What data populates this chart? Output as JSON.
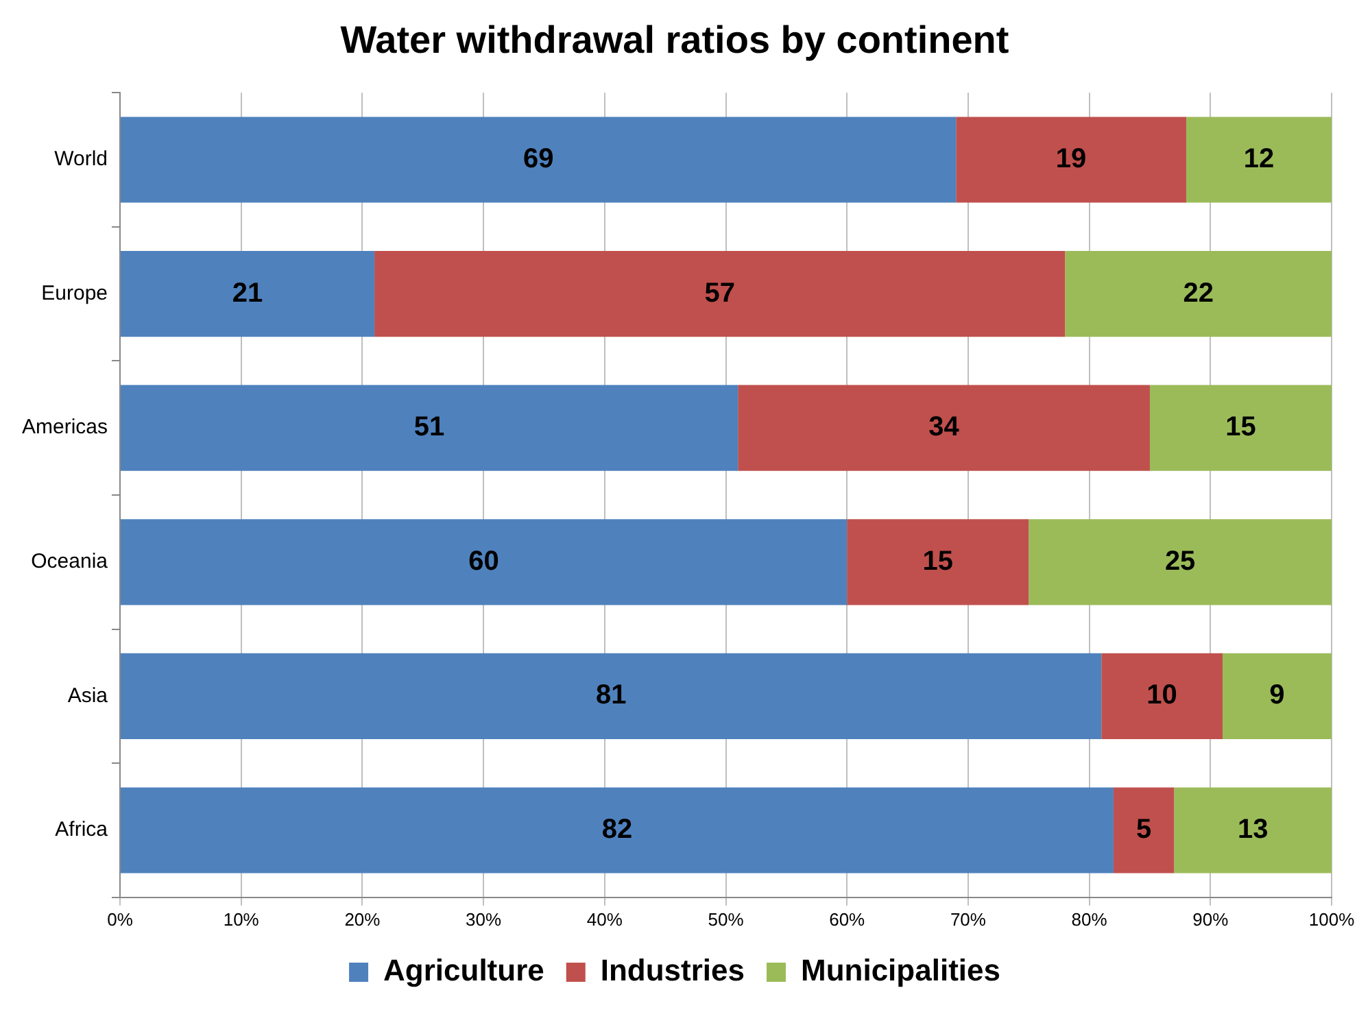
{
  "chart_data": {
    "type": "bar",
    "title": "Water withdrawal ratios by continent",
    "orientation": "horizontal",
    "stacked": true,
    "categories": [
      "World",
      "Europe",
      "Americas",
      "Oceania",
      "Asia",
      "Africa"
    ],
    "series": [
      {
        "name": "Agriculture",
        "color": "#4f81bd",
        "values": [
          69,
          21,
          51,
          60,
          81,
          82
        ]
      },
      {
        "name": "Industries",
        "color": "#c0504d",
        "values": [
          19,
          57,
          34,
          15,
          10,
          5
        ]
      },
      {
        "name": "Municipalities",
        "color": "#9bbb59",
        "values": [
          12,
          22,
          15,
          25,
          9,
          13
        ]
      }
    ],
    "xlim": [
      0,
      100
    ],
    "xticks": [
      {
        "value": 0,
        "label": "0%"
      },
      {
        "value": 10,
        "label": "10%"
      },
      {
        "value": 20,
        "label": "20%"
      },
      {
        "value": 30,
        "label": "30%"
      },
      {
        "value": 40,
        "label": "40%"
      },
      {
        "value": 50,
        "label": "50%"
      },
      {
        "value": 60,
        "label": "60%"
      },
      {
        "value": 70,
        "label": "70%"
      },
      {
        "value": 80,
        "label": "80%"
      },
      {
        "value": 90,
        "label": "90%"
      },
      {
        "value": 100,
        "label": "100%"
      }
    ],
    "grid": "x",
    "legend": "bottom",
    "data_labels": true
  }
}
